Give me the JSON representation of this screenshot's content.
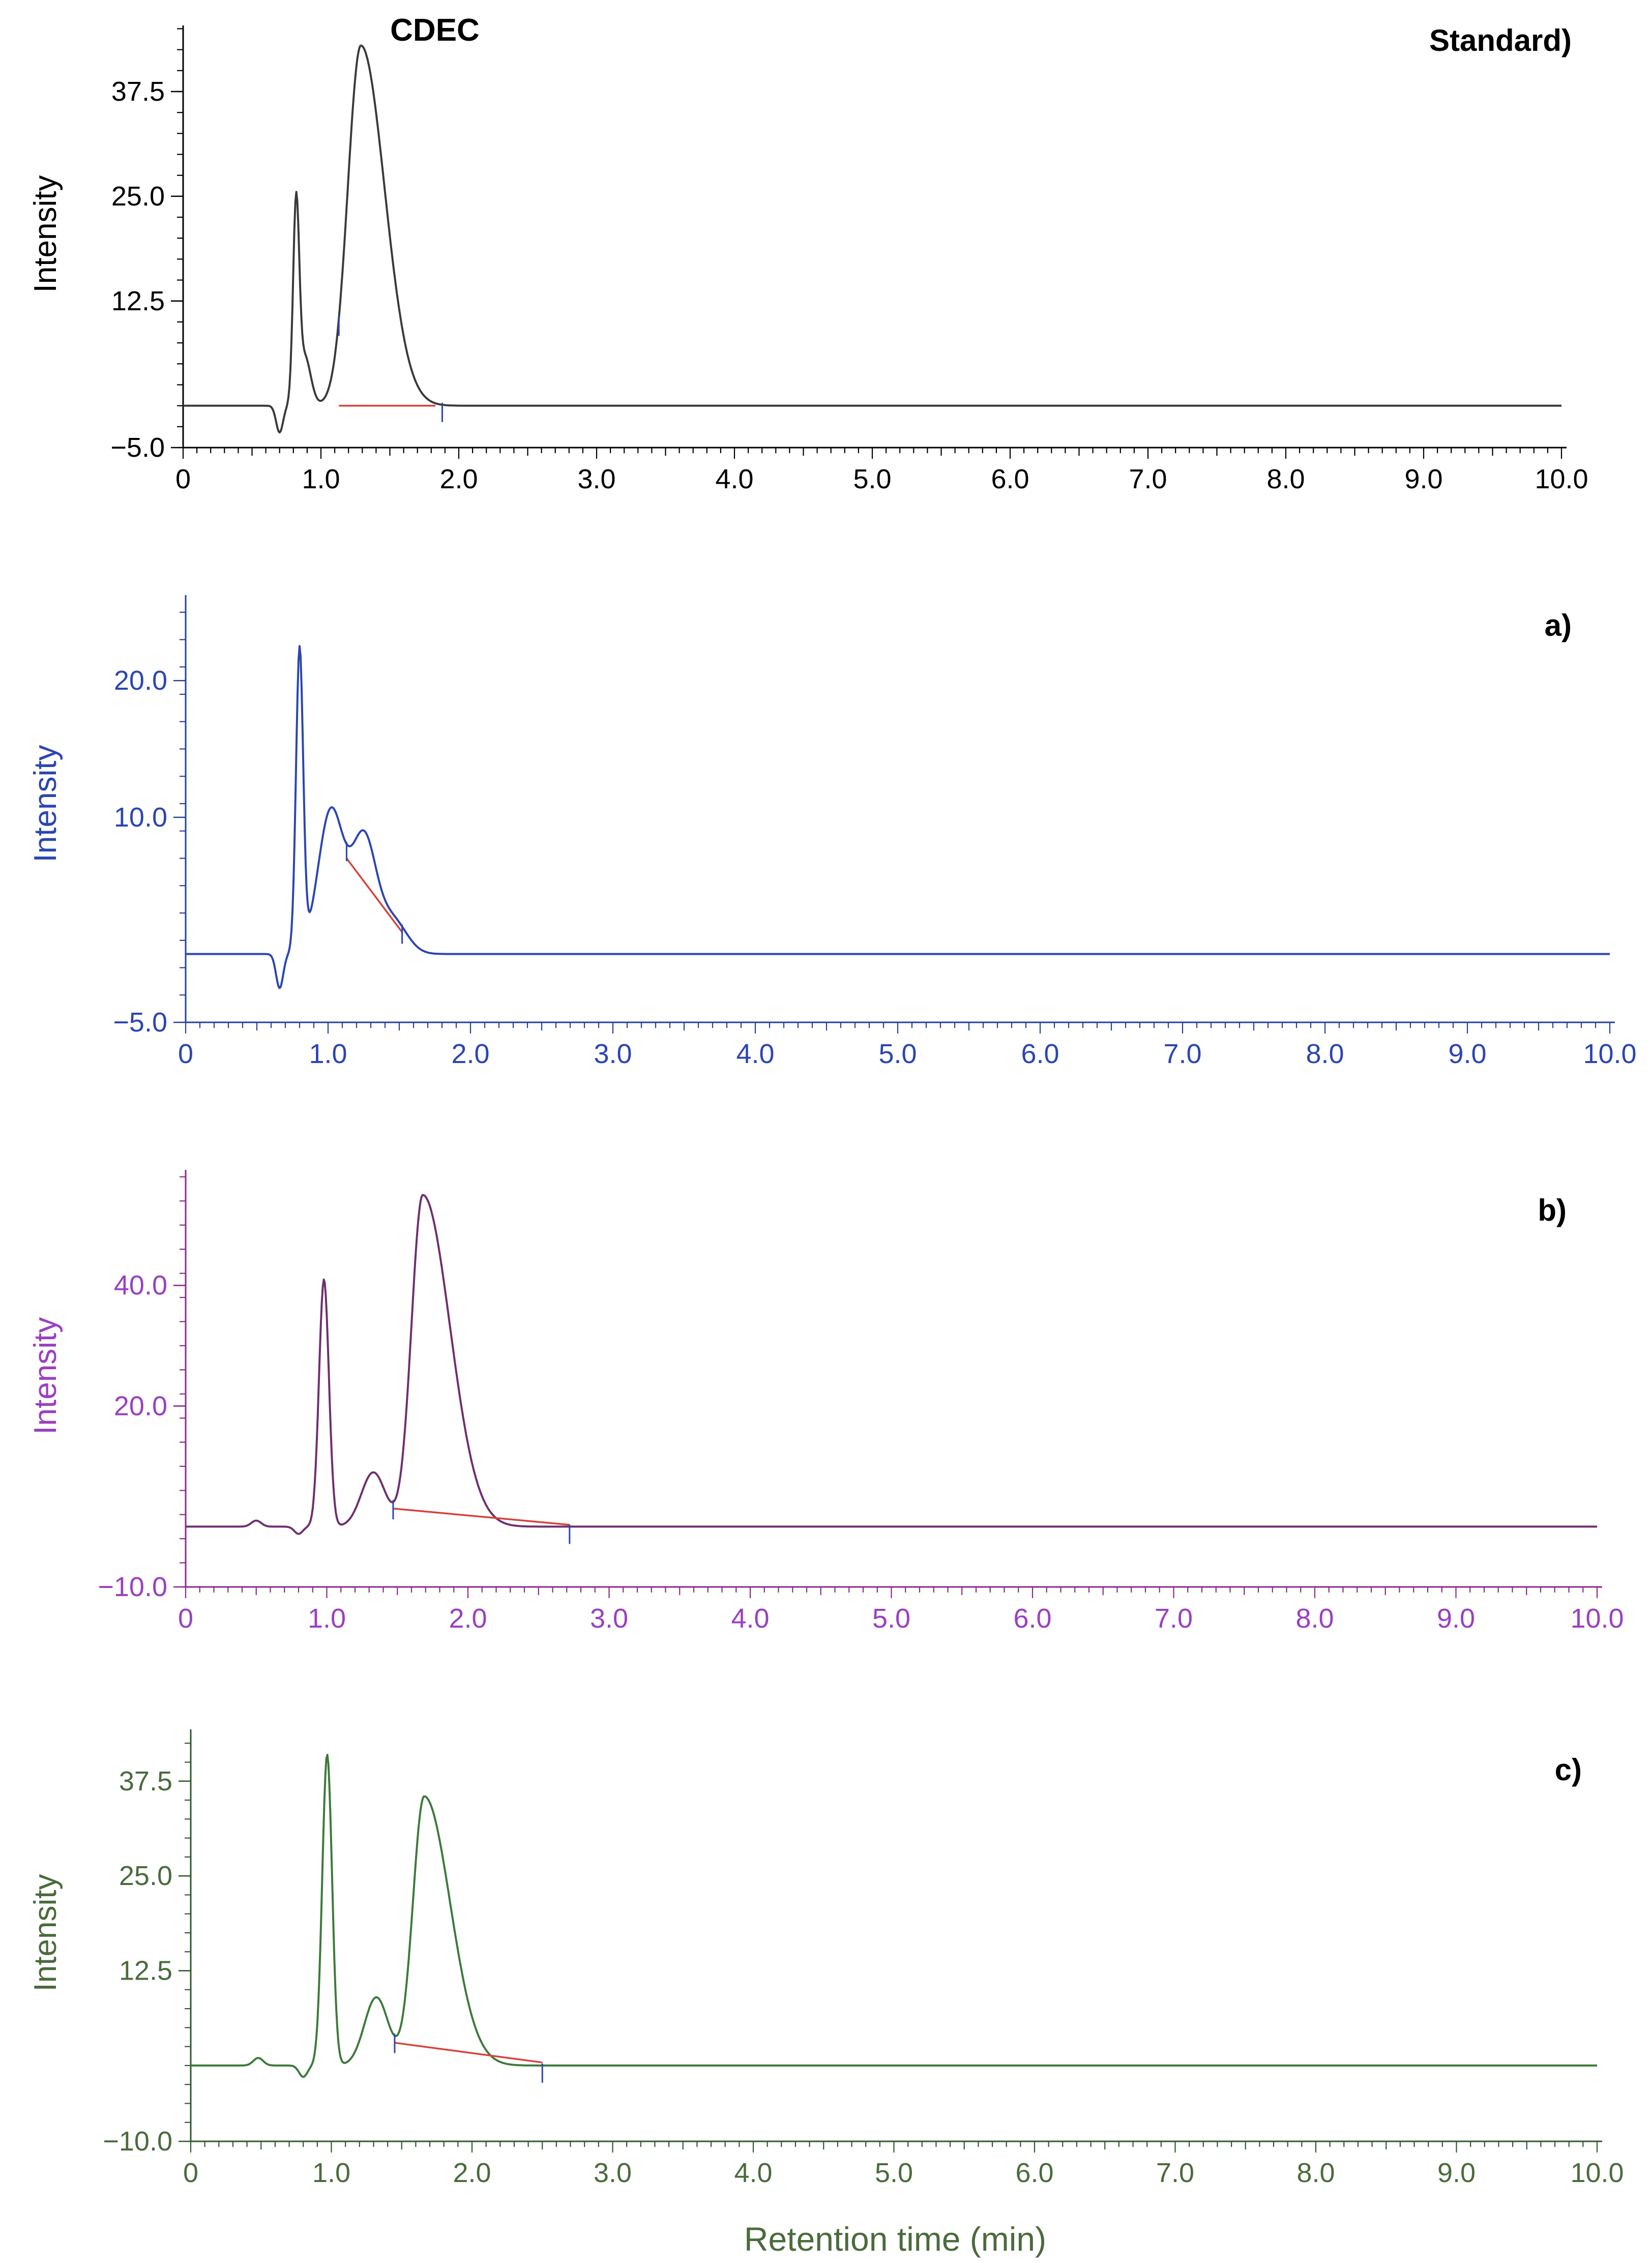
{
  "figure": {
    "shared_xlabel": "Retention time (min)",
    "xlabel_color": "#4a6b3c"
  },
  "chart_data": [
    {
      "type": "line",
      "panel_label": "Standard)",
      "peak_annotation": "CDEC",
      "ylabel": "Intensity",
      "xlabel": "",
      "color": "#3a3a3a",
      "axis_color": "#000000",
      "label_color": "#000000",
      "xlim": [
        0,
        10.0
      ],
      "ylim": [
        -5.0,
        46
      ],
      "x_ticks": [
        0,
        1.0,
        2.0,
        3.0,
        4.0,
        5.0,
        6.0,
        7.0,
        8.0,
        9.0,
        10.0
      ],
      "x_tick_labels": [
        "0",
        "1.0",
        "2.0",
        "3.0",
        "4.0",
        "5.0",
        "6.0",
        "7.0",
        "8.0",
        "9.0",
        "10.0"
      ],
      "y_ticks": [
        -5.0,
        12.5,
        25.0,
        37.5
      ],
      "y_tick_labels": [
        "−5.0",
        "12.5",
        "25.0",
        "37.5"
      ],
      "baseline": 0,
      "peaks": [
        {
          "rt": 0.7,
          "height": -3.2,
          "width": 0.025
        },
        {
          "rt": 0.82,
          "height": 23,
          "width": 0.022
        },
        {
          "rt": 0.88,
          "height": 6,
          "width": 0.045
        },
        {
          "rt": 1.29,
          "height": 43,
          "width": 0.095,
          "tail": 1.8
        }
      ],
      "integration_lines": [
        {
          "x1": 1.13,
          "y1": 0,
          "x2": 1.83,
          "y2": 0
        }
      ],
      "markers": [
        1.13,
        1.88
      ]
    },
    {
      "type": "line",
      "panel_label": "a)",
      "ylabel": "Intensity",
      "xlabel": "",
      "color": "#2b45b3",
      "axis_color": "#2a3f9a",
      "label_color": "#2b45b3",
      "xlim": [
        0,
        10.0
      ],
      "ylim": [
        -5.0,
        27
      ],
      "x_ticks": [
        0,
        1.0,
        2.0,
        3.0,
        4.0,
        5.0,
        6.0,
        7.0,
        8.0,
        9.0,
        10.0
      ],
      "x_tick_labels": [
        "0",
        "1.0",
        "2.0",
        "3.0",
        "4.0",
        "5.0",
        "6.0",
        "7.0",
        "8.0",
        "9.0",
        "10.0"
      ],
      "y_ticks": [
        -5.0,
        10.0,
        20.0
      ],
      "y_tick_labels": [
        "−5.0",
        "10.0",
        "20.0"
      ],
      "baseline": 0,
      "peaks": [
        {
          "rt": 0.66,
          "height": -2.5,
          "width": 0.025
        },
        {
          "rt": 0.8,
          "height": 22,
          "width": 0.025
        },
        {
          "rt": 1.02,
          "height": 10.5,
          "width": 0.09
        },
        {
          "rt": 1.25,
          "height": 8.3,
          "width": 0.085
        },
        {
          "rt": 1.45,
          "height": 2.5,
          "width": 0.1
        }
      ],
      "integration_lines": [
        {
          "x1": 1.13,
          "y1": 7.0,
          "x2": 1.52,
          "y2": 1.6
        }
      ],
      "markers": [
        1.13,
        1.52
      ]
    },
    {
      "type": "line",
      "panel_label": "b)",
      "ylabel": "Intensity",
      "xlabel": "",
      "color": "#6e2f6e",
      "axis_color": "#8a2a8a",
      "label_color": "#9a3fc2",
      "xlim": [
        0,
        10.0
      ],
      "ylim": [
        -10.0,
        60
      ],
      "x_ticks": [
        0,
        1.0,
        2.0,
        3.0,
        4.0,
        5.0,
        6.0,
        7.0,
        8.0,
        9.0,
        10.0
      ],
      "x_tick_labels": [
        "0",
        "1.0",
        "2.0",
        "3.0",
        "4.0",
        "5.0",
        "6.0",
        "7.0",
        "8.0",
        "9.0",
        "10.0"
      ],
      "y_ticks": [
        -10.0,
        20.0,
        40.0
      ],
      "y_tick_labels": [
        "−10.0",
        "20.0",
        "40.0"
      ],
      "baseline": 0,
      "peaks": [
        {
          "rt": 0.5,
          "height": 1.0,
          "width": 0.035
        },
        {
          "rt": 0.8,
          "height": -1.2,
          "width": 0.03
        },
        {
          "rt": 0.98,
          "height": 41,
          "width": 0.035
        },
        {
          "rt": 1.33,
          "height": 9,
          "width": 0.085
        },
        {
          "rt": 1.68,
          "height": 55,
          "width": 0.08,
          "tail": 2.4
        }
      ],
      "integration_lines": [
        {
          "x1": 1.47,
          "y1": 3.0,
          "x2": 2.72,
          "y2": 0.3
        }
      ],
      "markers": [
        1.47,
        2.72
      ]
    },
    {
      "type": "line",
      "panel_label": "c)",
      "ylabel": "Intensity",
      "xlabel": "Retention time (min)",
      "color": "#3d7a3a",
      "axis_color": "#2f5a2f",
      "label_color": "#4a6b3c",
      "xlim": [
        0,
        10.0
      ],
      "ylim": [
        -10.0,
        45
      ],
      "x_ticks": [
        0,
        1.0,
        2.0,
        3.0,
        4.0,
        5.0,
        6.0,
        7.0,
        8.0,
        9.0,
        10.0
      ],
      "x_tick_labels": [
        "0",
        "1.0",
        "2.0",
        "3.0",
        "4.0",
        "5.0",
        "6.0",
        "7.0",
        "8.0",
        "9.0",
        "10.0"
      ],
      "y_ticks": [
        -10.0,
        12.5,
        25.0,
        37.5
      ],
      "y_tick_labels": [
        "−10.0",
        "12.5",
        "25.0",
        "37.5"
      ],
      "baseline": 0,
      "peaks": [
        {
          "rt": 0.48,
          "height": 1.0,
          "width": 0.035
        },
        {
          "rt": 0.8,
          "height": -1.5,
          "width": 0.03
        },
        {
          "rt": 0.97,
          "height": 41,
          "width": 0.035
        },
        {
          "rt": 1.32,
          "height": 9,
          "width": 0.085
        },
        {
          "rt": 1.66,
          "height": 35.5,
          "width": 0.08,
          "tail": 2.3
        }
      ],
      "integration_lines": [
        {
          "x1": 1.45,
          "y1": 3.0,
          "x2": 2.5,
          "y2": 0.4
        }
      ],
      "markers": [
        1.45,
        2.5
      ]
    }
  ]
}
